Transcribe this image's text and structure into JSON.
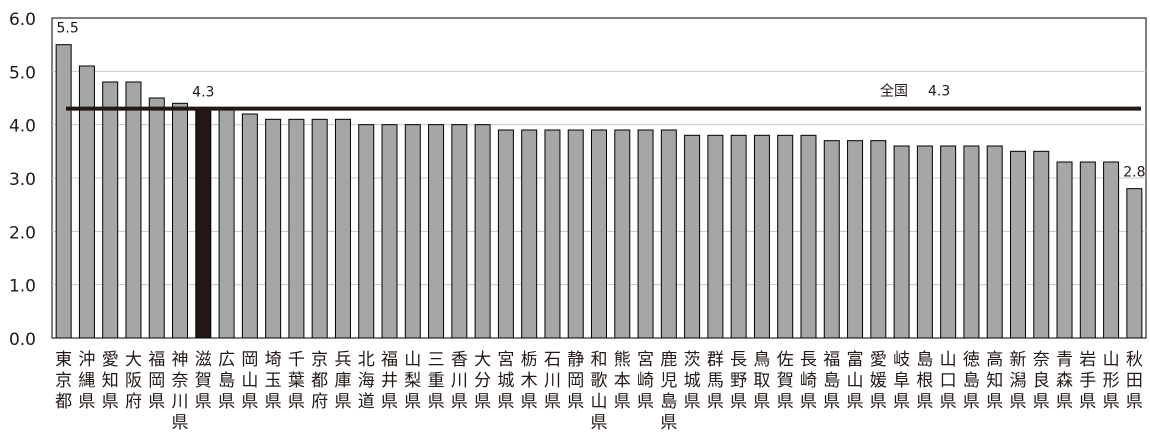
{
  "chart_data": {
    "type": "bar",
    "categories": [
      "東京都",
      "沖縄県",
      "愛知県",
      "大阪府",
      "福岡県",
      "神奈川県",
      "滋賀県",
      "広島県",
      "岡山県",
      "埼玉県",
      "千葉県",
      "京都府",
      "兵庫県",
      "北海道",
      "福井県",
      "山梨県",
      "三重県",
      "香川県",
      "大分県",
      "宮城県",
      "栃木県",
      "石川県",
      "静岡県",
      "和歌山県",
      "熊本県",
      "宮崎県",
      "鹿児島県",
      "茨城県",
      "群馬県",
      "長野県",
      "鳥取県",
      "佐賀県",
      "長崎県",
      "福島県",
      "富山県",
      "愛媛県",
      "岐阜県",
      "島根県",
      "山口県",
      "徳島県",
      "高知県",
      "新潟県",
      "奈良県",
      "青森県",
      "岩手県",
      "山形県",
      "秋田県"
    ],
    "values": [
      5.5,
      5.1,
      4.8,
      4.8,
      4.5,
      4.4,
      4.3,
      4.3,
      4.2,
      4.1,
      4.1,
      4.1,
      4.1,
      4.0,
      4.0,
      4.0,
      4.0,
      4.0,
      4.0,
      3.9,
      3.9,
      3.9,
      3.9,
      3.9,
      3.9,
      3.9,
      3.9,
      3.8,
      3.8,
      3.8,
      3.8,
      3.8,
      3.8,
      3.7,
      3.7,
      3.7,
      3.6,
      3.6,
      3.6,
      3.6,
      3.6,
      3.5,
      3.5,
      3.3,
      3.3,
      3.3,
      2.8
    ],
    "highlight_category": "滋賀県",
    "data_labels": [
      {
        "category": "東京都",
        "text": "5.5"
      },
      {
        "category": "滋賀県",
        "text": "4.3"
      },
      {
        "category": "秋田県",
        "text": "2.8"
      }
    ],
    "reference_line": {
      "label": "全国",
      "value": 4.3,
      "value_text": "4.3"
    },
    "y_ticks": [
      "0.0",
      "1.0",
      "2.0",
      "3.0",
      "4.0",
      "5.0",
      "6.0"
    ],
    "ylim": [
      0,
      6
    ],
    "title": "",
    "xlabel": "",
    "ylabel": "",
    "grid": true,
    "colors": {
      "bar": "#a6a6a6",
      "bar_stroke": "#000000",
      "highlight": "#231815",
      "grid": "#c8c8c8",
      "reference_line": "#231815",
      "text": "#231815"
    }
  }
}
